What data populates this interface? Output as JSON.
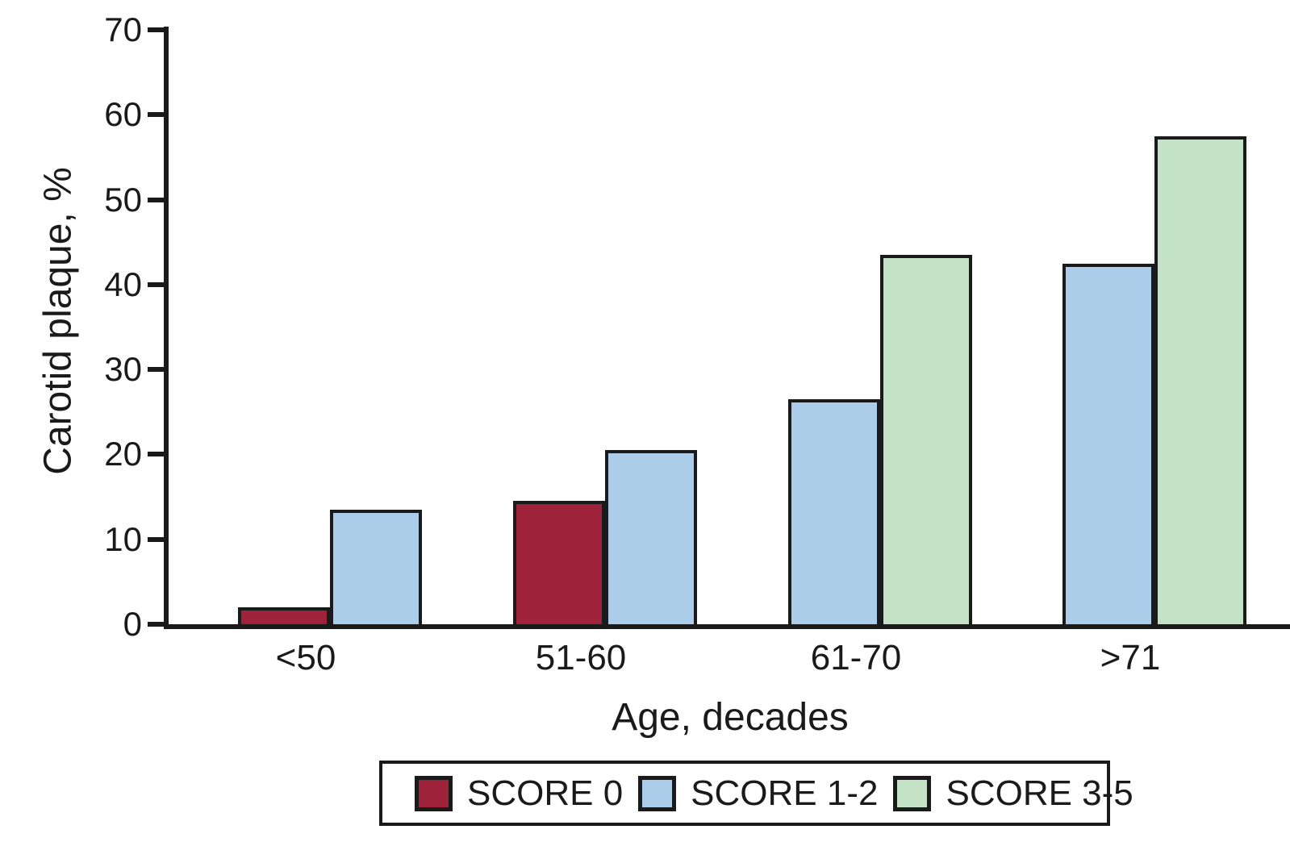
{
  "chart_data": {
    "type": "bar",
    "title": "",
    "xlabel": "Age, decades",
    "ylabel": "Carotid plaque, %",
    "ylim": [
      0,
      70
    ],
    "yticks": [
      0,
      10,
      20,
      30,
      40,
      50,
      60,
      70
    ],
    "categories": [
      "<50",
      "51-60",
      "61-70",
      ">71"
    ],
    "series": [
      {
        "name": "SCORE 0",
        "color": "#9e2239",
        "values": [
          2,
          14.5,
          null,
          null
        ]
      },
      {
        "name": "SCORE 1-2",
        "color": "#accde9",
        "values": [
          13.5,
          20.5,
          26.5,
          42.5
        ]
      },
      {
        "name": "SCORE 3-5",
        "color": "#c4e2c5",
        "values": [
          null,
          null,
          43.5,
          57.5
        ]
      }
    ],
    "grid": false,
    "legend_position": "bottom",
    "axis_color": "#1a1a1a",
    "background": "#ffffff"
  }
}
